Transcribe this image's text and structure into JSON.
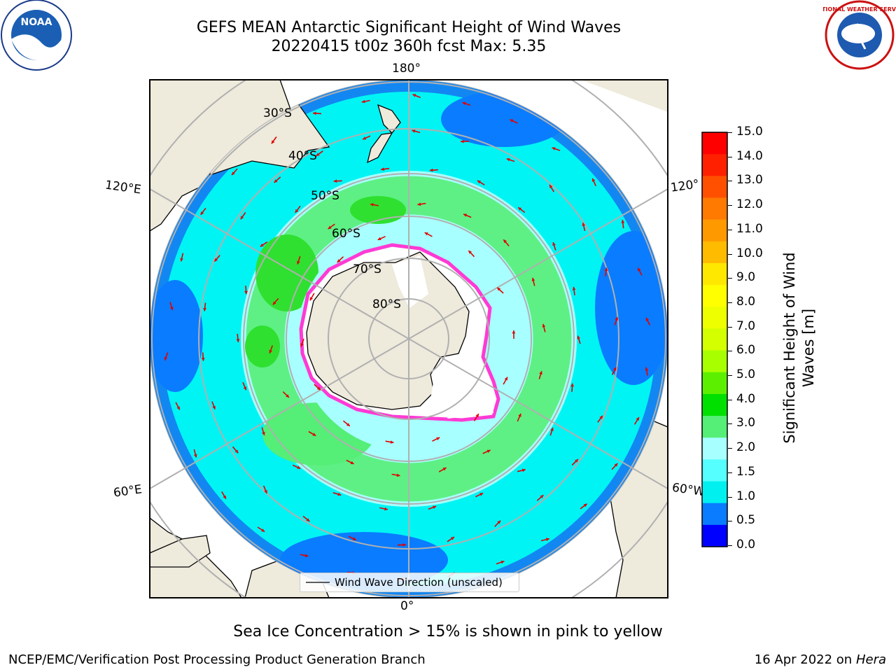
{
  "title": {
    "line1": "GEFS MEAN Antarctic Significant Height of Wind Waves",
    "line2": "20220415 t00z 360h fcst   Max: 5.35"
  },
  "map": {
    "lon_labels": {
      "top": "180°",
      "bottom": "0°",
      "left_upper": "120°E",
      "left_lower": "60°E",
      "right_upper": "120°",
      "right_lower": "60°W"
    },
    "lat_labels": [
      "30°S",
      "40°S",
      "50°S",
      "60°S",
      "70°S",
      "80°S"
    ],
    "legend": "Wind Wave Direction (unscaled)",
    "arrow_color": "#e00000",
    "land_color": "#eeeadc"
  },
  "colorbar": {
    "title_line1": "Significant Height of Wind",
    "title_line2": "Waves [m]",
    "ticks": [
      "15.0",
      "14.0",
      "13.0",
      "12.0",
      "11.0",
      "10.0",
      "9.0",
      "8.0",
      "7.0",
      "6.0",
      "5.0",
      "4.0",
      "3.0",
      "2.0",
      "1.5",
      "1.0",
      "0.5",
      "0.0"
    ],
    "colors": [
      "#ff0000",
      "#ff2000",
      "#ff5000",
      "#ff7a00",
      "#ff9900",
      "#ffbb00",
      "#ffe800",
      "#ffff00",
      "#eeff00",
      "#d4ff00",
      "#a8ff00",
      "#5cf000",
      "#00e000",
      "#55ee77",
      "#a8ffff",
      "#55ffff",
      "#00f0f0",
      "#0a7cff",
      "#0000ff"
    ]
  },
  "subtitle": "Sea Ice Concentration > 15% is shown in pink to yellow",
  "footer": {
    "left": "NCEP/EMC/Verification Post Processing Product Generation Branch",
    "right_prefix": "16 Apr 2022 on ",
    "right_italic": "Hera"
  },
  "logos": {
    "noaa_text": "NOAA",
    "nws_text": "NATIONAL WEATHER SERVICE"
  }
}
